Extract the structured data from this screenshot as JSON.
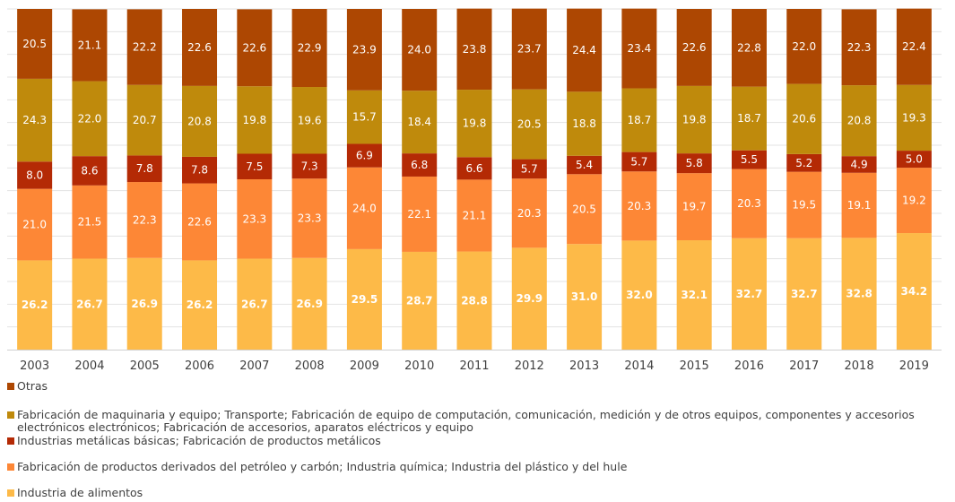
{
  "chart_data": {
    "type": "bar",
    "stacked": true,
    "percent": true,
    "categories": [
      "2003",
      "2004",
      "2005",
      "2006",
      "2007",
      "2008",
      "2009",
      "2010",
      "2011",
      "2012",
      "2013",
      "2014",
      "2015",
      "2016",
      "2017",
      "2018",
      "2019"
    ],
    "ylim": [
      0,
      100
    ],
    "grid": true,
    "legend_position": "bottom",
    "series": [
      {
        "name": "Industria de alimentos",
        "color": "#FDBA48",
        "values": [
          26.2,
          26.7,
          26.9,
          26.2,
          26.7,
          26.9,
          29.5,
          28.7,
          28.8,
          29.9,
          31.0,
          32.0,
          32.1,
          32.7,
          32.7,
          32.8,
          34.2
        ],
        "labels": [
          "26.2",
          "26.7",
          "26.9",
          "26.2",
          "26.7",
          "26.9",
          "29.5",
          "28.7",
          "28.8",
          "29.9",
          "31.0",
          "32.0",
          "32.1",
          "32.7",
          "32.7",
          "32.8",
          "34.2"
        ]
      },
      {
        "name": "Fabricación de productos derivados del petróleo y carbón; Industria química; Industria del plástico y del hule",
        "color": "#FD8736",
        "values": [
          21.0,
          21.5,
          22.3,
          22.6,
          23.3,
          23.3,
          24.0,
          22.1,
          21.1,
          20.3,
          20.5,
          20.3,
          19.7,
          20.3,
          19.5,
          19.1,
          19.2
        ],
        "labels": [
          "21.0",
          "21.5",
          "22.3",
          "22.6",
          "23.3",
          "23.3",
          "24.0",
          "22.1",
          "21.1",
          "20.3",
          "20.5",
          "20.3",
          "19.7",
          "20.3",
          "19.5",
          "19.1",
          "19.2"
        ]
      },
      {
        "name": "Industrias metálicas básicas; Fabricación de productos metálicos",
        "color": "#B42A05",
        "values": [
          8.0,
          8.6,
          7.8,
          7.8,
          7.5,
          7.3,
          6.9,
          6.8,
          6.6,
          5.7,
          5.4,
          5.7,
          5.8,
          5.5,
          5.2,
          4.9,
          5.0
        ],
        "labels": [
          "8.0",
          "8.6",
          "7.8",
          "7.8",
          "7.5",
          "7.3",
          "6.9",
          "6.8",
          "6.6",
          "5.7",
          "5.4",
          "5.7",
          "5.8",
          "5.5",
          "5.2",
          "4.9",
          "5.0"
        ]
      },
      {
        "name": "Fabricación de maquinaria y equipo; Transporte; Fabricación de equipo de computación, comunicación, medición y de otros equipos, componentes y accesorios electrónicos electrónicos; Fabricación de accesorios, aparatos eléctricos y equipo",
        "color": "#BF8A0C",
        "values": [
          24.3,
          22.0,
          20.7,
          20.8,
          19.8,
          19.6,
          15.7,
          18.4,
          19.8,
          20.5,
          18.8,
          18.7,
          19.8,
          18.7,
          20.6,
          20.8,
          19.3
        ],
        "labels": [
          "24.3",
          "22.0",
          "20.7",
          "20.8",
          "19.8",
          "19.6",
          "15.7",
          "18.4",
          "19.8",
          "20.5",
          "18.8",
          "18.7",
          "19.8",
          "18.7",
          "20.6",
          "20.8",
          "19.3"
        ]
      },
      {
        "name": "Otras",
        "color": "#AD4702",
        "values": [
          20.5,
          21.1,
          22.2,
          22.6,
          22.6,
          22.9,
          23.9,
          24.0,
          23.8,
          23.7,
          24.4,
          23.4,
          22.6,
          22.8,
          22.0,
          22.3,
          22.4
        ],
        "labels": [
          "20.5",
          "21.1",
          "22.2",
          "22.6",
          "22.6",
          "22.9",
          "23.9",
          "24.0",
          "23.8",
          "23.7",
          "24.4",
          "23.4",
          "22.6",
          "22.8",
          "22.0",
          "22.3",
          "22.4"
        ]
      }
    ]
  }
}
